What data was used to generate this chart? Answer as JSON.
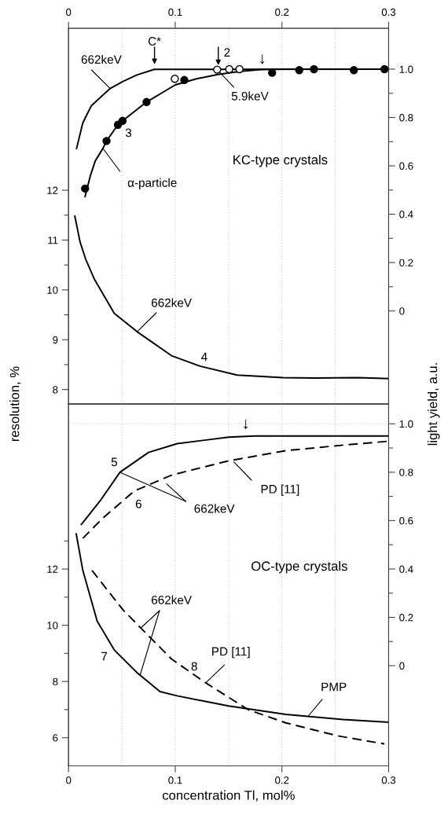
{
  "chart_data": [
    {
      "type": "line",
      "ylabel": "resolution, %",
      "y2label": "light yield, a.u.",
      "xlim": [
        0,
        0.3
      ],
      "xticks": [
        0,
        0.1,
        0.2,
        0.3
      ],
      "ylim": [
        7.71,
        15.25
      ],
      "yticks": [
        8,
        9,
        10,
        11,
        12,
        {
          "value": 8.5,
          "label": null
        },
        {
          "value": 9.5,
          "label": null
        },
        {
          "value": 10.5,
          "label": null
        },
        {
          "value": 11.5,
          "label": null
        }
      ],
      "y2lim": [
        -0.385,
        1.169
      ],
      "y2ticks": [
        0,
        0.2,
        0.4,
        0.6,
        0.8,
        {
          "value": 1.0,
          "label": "1.0"
        },
        {
          "value": 0.1,
          "label": null
        },
        {
          "value": 0.3,
          "label": null
        },
        {
          "value": 0.5,
          "label": null
        },
        {
          "value": 0.7,
          "label": null
        },
        {
          "value": 0.9,
          "label": null
        }
      ],
      "ref_lines": [
        {
          "axis": "x",
          "value": 0.05,
          "color": "#c8c8c8",
          "line_style": "dotted"
        },
        {
          "axis": "x",
          "value": 0.1,
          "color": "#c8c8c8",
          "line_style": "dotted"
        },
        {
          "axis": "x",
          "value": 0.15,
          "color": "#c8c8c8",
          "line_style": "dotted"
        },
        {
          "axis": "x",
          "value": 0.2,
          "color": "#c8c8c8",
          "line_style": "dotted"
        },
        {
          "axis": "x",
          "value": 0.25,
          "color": "#c8c8c8",
          "line_style": "dotted"
        }
      ],
      "series": [
        {
          "axis": "y2",
          "color": "#000000",
          "line_style": "solid",
          "x": [
            0.0075,
            0.0134,
            0.0214,
            0.039,
            0.051,
            0.064,
            0.0804,
            0.3
          ],
          "values": [
            0.672,
            0.778,
            0.849,
            0.92,
            0.949,
            0.976,
            0.999,
            1.0
          ]
        },
        {
          "axis": "y2",
          "color": "#000000",
          "line_style": "solid",
          "x": [
            0.0155,
            0.0205,
            0.025,
            0.0322,
            0.0356,
            0.0463,
            0.0506,
            0.0731,
            0.1,
            0.12,
            0.14,
            0.16,
            0.18,
            0.2,
            0.3
          ],
          "values": [
            0.473,
            0.56,
            0.62,
            0.672,
            0.703,
            0.77,
            0.786,
            0.864,
            0.935,
            0.96,
            0.978,
            0.99,
            0.998,
            1.0,
            1.0
          ]
        },
        {
          "type": "scatter",
          "axis": "y2",
          "color": "#000000",
          "marker": "circle",
          "x": [
            0.0155,
            0.0356,
            0.0463,
            0.0506,
            0.0731,
            0.1085,
            0.1908,
            0.2162,
            0.23,
            0.2674,
            0.2961
          ],
          "values": [
            0.506,
            0.703,
            0.77,
            0.786,
            0.864,
            0.955,
            0.985,
            0.996,
            1.0,
            0.996,
            1.0
          ]
        },
        {
          "type": "scatter",
          "axis": "y2",
          "color": "#ffffff",
          "marker": "circle",
          "x": [
            0.0996,
            0.1393,
            0.1506,
            0.1602
          ],
          "values": [
            0.96,
            0.998,
            1.0,
            1.0
          ]
        },
        {
          "axis": "y",
          "color": "#000000",
          "line_style": "solid",
          "x": [
            0.0059,
            0.0107,
            0.016,
            0.0241,
            0.0429,
            0.0643,
            0.0965,
            0.1232,
            0.158,
            0.201,
            0.2311,
            0.2713,
            0.3
          ],
          "values": [
            11.48,
            10.97,
            10.62,
            10.22,
            9.53,
            9.16,
            8.68,
            8.47,
            8.29,
            8.24,
            8.23,
            8.24,
            8.22
          ]
        }
      ],
      "annotations": [
        "C*",
        "2",
        {
          "text": "662keV",
          "x": 0.039,
          "y": 14.04
        },
        "↓",
        {
          "text": "5.9keV",
          "x": 0.1393,
          "y": 14.42
        },
        "3",
        {
          "text": "α-particle",
          "x": 0.0322,
          "y": 12.84
        },
        "KC-type crystals",
        {
          "text": "662keV",
          "x": 0.0643,
          "y": 9.16
        },
        "4"
      ]
    },
    {
      "type": "line",
      "xlabel": "concentration Tl, mol%",
      "xlim": [
        0,
        0.3
      ],
      "xticks": [
        0,
        0.1,
        0.2,
        0.3
      ],
      "ylim": [
        5,
        17.87
      ],
      "yticks": [
        6,
        8,
        10,
        12,
        {
          "value": 7,
          "label": null
        },
        {
          "value": 9,
          "label": null
        },
        {
          "value": 11,
          "label": null
        },
        {
          "value": 13,
          "label": null
        }
      ],
      "y2lim": [
        -0.414,
        1.082
      ],
      "y2ticks": [
        0,
        0.2,
        0.4,
        0.6,
        0.8,
        {
          "value": 1.0,
          "label": "1.0"
        },
        {
          "value": 0.1,
          "label": null
        },
        {
          "value": 0.3,
          "label": null
        },
        {
          "value": 0.5,
          "label": null
        },
        {
          "value": 0.7,
          "label": null
        },
        {
          "value": 0.9,
          "label": null
        }
      ],
      "ref_lines": [
        {
          "axis": "x",
          "value": 0.05,
          "color": "#c8c8c8",
          "line_style": "dotted"
        },
        {
          "axis": "x",
          "value": 0.1,
          "color": "#c8c8c8",
          "line_style": "dotted"
        },
        {
          "axis": "x",
          "value": 0.15,
          "color": "#c8c8c8",
          "line_style": "dotted"
        },
        {
          "axis": "x",
          "value": 0.2,
          "color": "#c8c8c8",
          "line_style": "dotted"
        },
        {
          "axis": "x",
          "value": 0.25,
          "color": "#c8c8c8",
          "line_style": "dotted"
        },
        {
          "axis": "y2",
          "value": 1.0,
          "color": "#c8c8c8",
          "line_style": "dotted"
        }
      ],
      "series": [
        {
          "axis": "y2",
          "color": "#000000",
          "line_style": "solid",
          "x": [
            0.012,
            0.0295,
            0.0482,
            0.075,
            0.1018,
            0.15,
            0.1742,
            0.2311,
            0.3
          ],
          "values": [
            0.584,
            0.681,
            0.8,
            0.882,
            0.918,
            0.945,
            0.95,
            0.95,
            0.95
          ]
        },
        {
          "axis": "y2",
          "color": "#000000",
          "line_style": "dashed",
          "x": [
            0.0134,
            0.0321,
            0.0616,
            0.0965,
            0.15,
            0.2036,
            0.2573,
            0.3
          ],
          "values": [
            0.527,
            0.61,
            0.722,
            0.788,
            0.847,
            0.889,
            0.912,
            0.928
          ]
        },
        {
          "axis": "y",
          "color": "#000000",
          "line_style": "solid",
          "x": [
            0.0072,
            0.0134,
            0.0268,
            0.0429,
            0.0643,
            0.0857,
            0.1018,
            0.15,
            0.2036,
            0.2573,
            0.3
          ],
          "values": [
            13.25,
            11.95,
            10.15,
            9.12,
            8.31,
            7.64,
            7.49,
            7.13,
            6.83,
            6.65,
            6.55
          ]
        },
        {
          "axis": "y",
          "color": "#000000",
          "line_style": "dashed",
          "x": [
            0.022,
            0.051,
            0.067,
            0.0965,
            0.1286,
            0.1688,
            0.2036,
            0.2519,
            0.296
          ],
          "values": [
            11.95,
            10.55,
            9.93,
            8.8,
            7.95,
            6.99,
            6.53,
            6.07,
            5.78
          ]
        }
      ],
      "annotations": [
        "↓",
        "5",
        "6",
        {
          "text": "662keV",
          "x": 0.0482,
          "y": 15.44
        },
        {
          "text": "PD [11]",
          "x": 0.1549,
          "y": 15.81
        },
        "OC-type crystals",
        {
          "text": "662keV",
          "x": 0.067,
          "y": 8.22
        },
        "7",
        "8",
        {
          "text": "PD [11]",
          "x": 0.1286,
          "y": 7.95
        },
        {
          "text": "PMP",
          "x": 0.2245,
          "y": 6.76
        }
      ]
    }
  ]
}
